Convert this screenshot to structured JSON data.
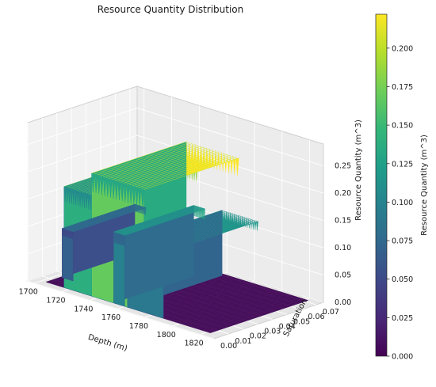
{
  "chart_data": {
    "type": "surface3d",
    "title": "Resource Quantity Distribution",
    "xlabel": "Depth (m)",
    "ylabel": "Saturation",
    "zlabel": "Resource Quantity (m^3)",
    "xlim": [
      1695,
      1830
    ],
    "ylim": [
      0.0,
      0.075
    ],
    "zlim": [
      0.0,
      0.29
    ],
    "x_ticks": [
      "1700",
      "1720",
      "1740",
      "1760",
      "1780",
      "1800",
      "1820"
    ],
    "y_ticks": [
      "0.00",
      "0.01",
      "0.02",
      "0.03",
      "0.04",
      "0.05",
      "0.06",
      "0.07"
    ],
    "z_ticks": [
      "0.00",
      "0.05",
      "0.10",
      "0.15",
      "0.20",
      "0.25"
    ],
    "colormap": "viridis",
    "colorbar": {
      "label": "Resource Quantity (m^3)",
      "range": [
        0.0,
        0.222
      ],
      "ticks": [
        "0.000",
        "0.025",
        "0.050",
        "0.075",
        "0.100",
        "0.125",
        "0.150",
        "0.175",
        "0.200"
      ]
    },
    "grid": true,
    "ridges": [
      {
        "depth_start": 1704,
        "depth_end": 1712,
        "saturation_start": 0.015,
        "saturation_end": 0.065,
        "peak": 0.09
      },
      {
        "depth_start": 1716,
        "depth_end": 1744,
        "saturation_start": 0.005,
        "saturation_end": 0.07,
        "peak": 0.185
      },
      {
        "depth_start": 1736,
        "depth_end": 1774,
        "saturation_start": 0.005,
        "saturation_end": 0.07,
        "peak": 0.225
      },
      {
        "depth_start": 1752,
        "depth_end": 1760,
        "saturation_start": 0.005,
        "saturation_end": 0.06,
        "peak": 0.13
      },
      {
        "depth_start": 1762,
        "depth_end": 1788,
        "saturation_start": 0.005,
        "saturation_end": 0.07,
        "peak": 0.12
      }
    ]
  }
}
